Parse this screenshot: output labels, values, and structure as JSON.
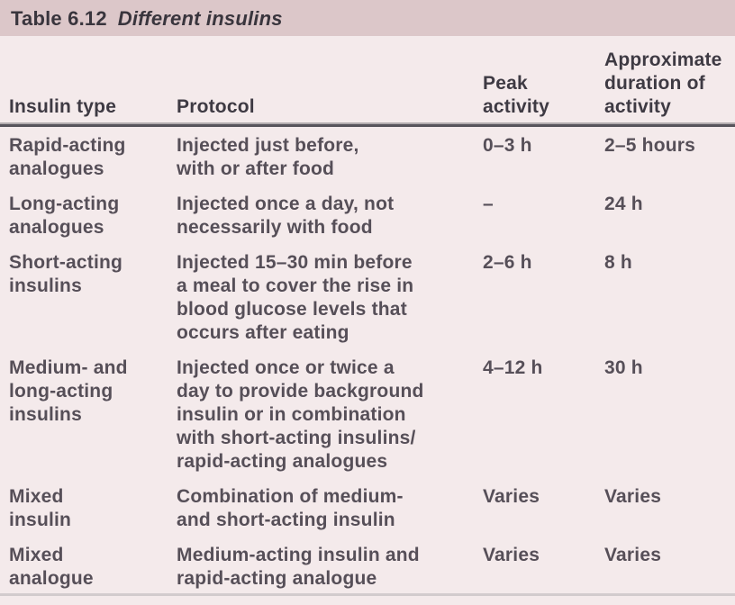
{
  "title": {
    "prefix": "Table 6.12",
    "name": "Different insulins"
  },
  "colors": {
    "title_bar_bg": "#dcc7c9",
    "table_bg": "#f4eaeb",
    "title_text": "#39353d",
    "header_text": "#3e3a43",
    "body_text": "#564f58",
    "header_rule_dark": "#57545b",
    "bottom_rule": "#d2cbcd"
  },
  "table": {
    "headers": [
      {
        "label": "Insulin type"
      },
      {
        "label": "Protocol"
      },
      {
        "label": "Peak\nactivity"
      },
      {
        "label": "Approximate\nduration of\nactivity"
      }
    ],
    "rows": [
      {
        "insulin_type": "Rapid-acting\nanalogues",
        "protocol": "Injected just before,\nwith or after food",
        "peak": "0–3 h",
        "duration": "2–5 hours"
      },
      {
        "insulin_type": "Long-acting\nanalogues",
        "protocol": "Injected once a day, not\nnecessarily with food",
        "peak": "–",
        "duration": "24 h"
      },
      {
        "insulin_type": "Short-acting\ninsulins",
        "protocol": "Injected 15–30 min before\na meal to cover the rise in\nblood glucose levels that\noccurs after eating",
        "peak": "2–6 h",
        "duration": "8 h"
      },
      {
        "insulin_type": "Medium- and\nlong-acting\ninsulins",
        "protocol": "Injected once or twice a\nday to provide background\ninsulin or in combination\nwith short-acting insulins/\nrapid-acting analogues",
        "peak": "4–12 h",
        "duration": "30 h"
      },
      {
        "insulin_type": "Mixed\ninsulin",
        "protocol": "Combination of medium-\nand short-acting insulin",
        "peak": "Varies",
        "duration": "Varies"
      },
      {
        "insulin_type": "Mixed\nanalogue",
        "protocol": "Medium-acting insulin and\nrapid-acting analogue",
        "peak": "Varies",
        "duration": "Varies"
      }
    ]
  }
}
